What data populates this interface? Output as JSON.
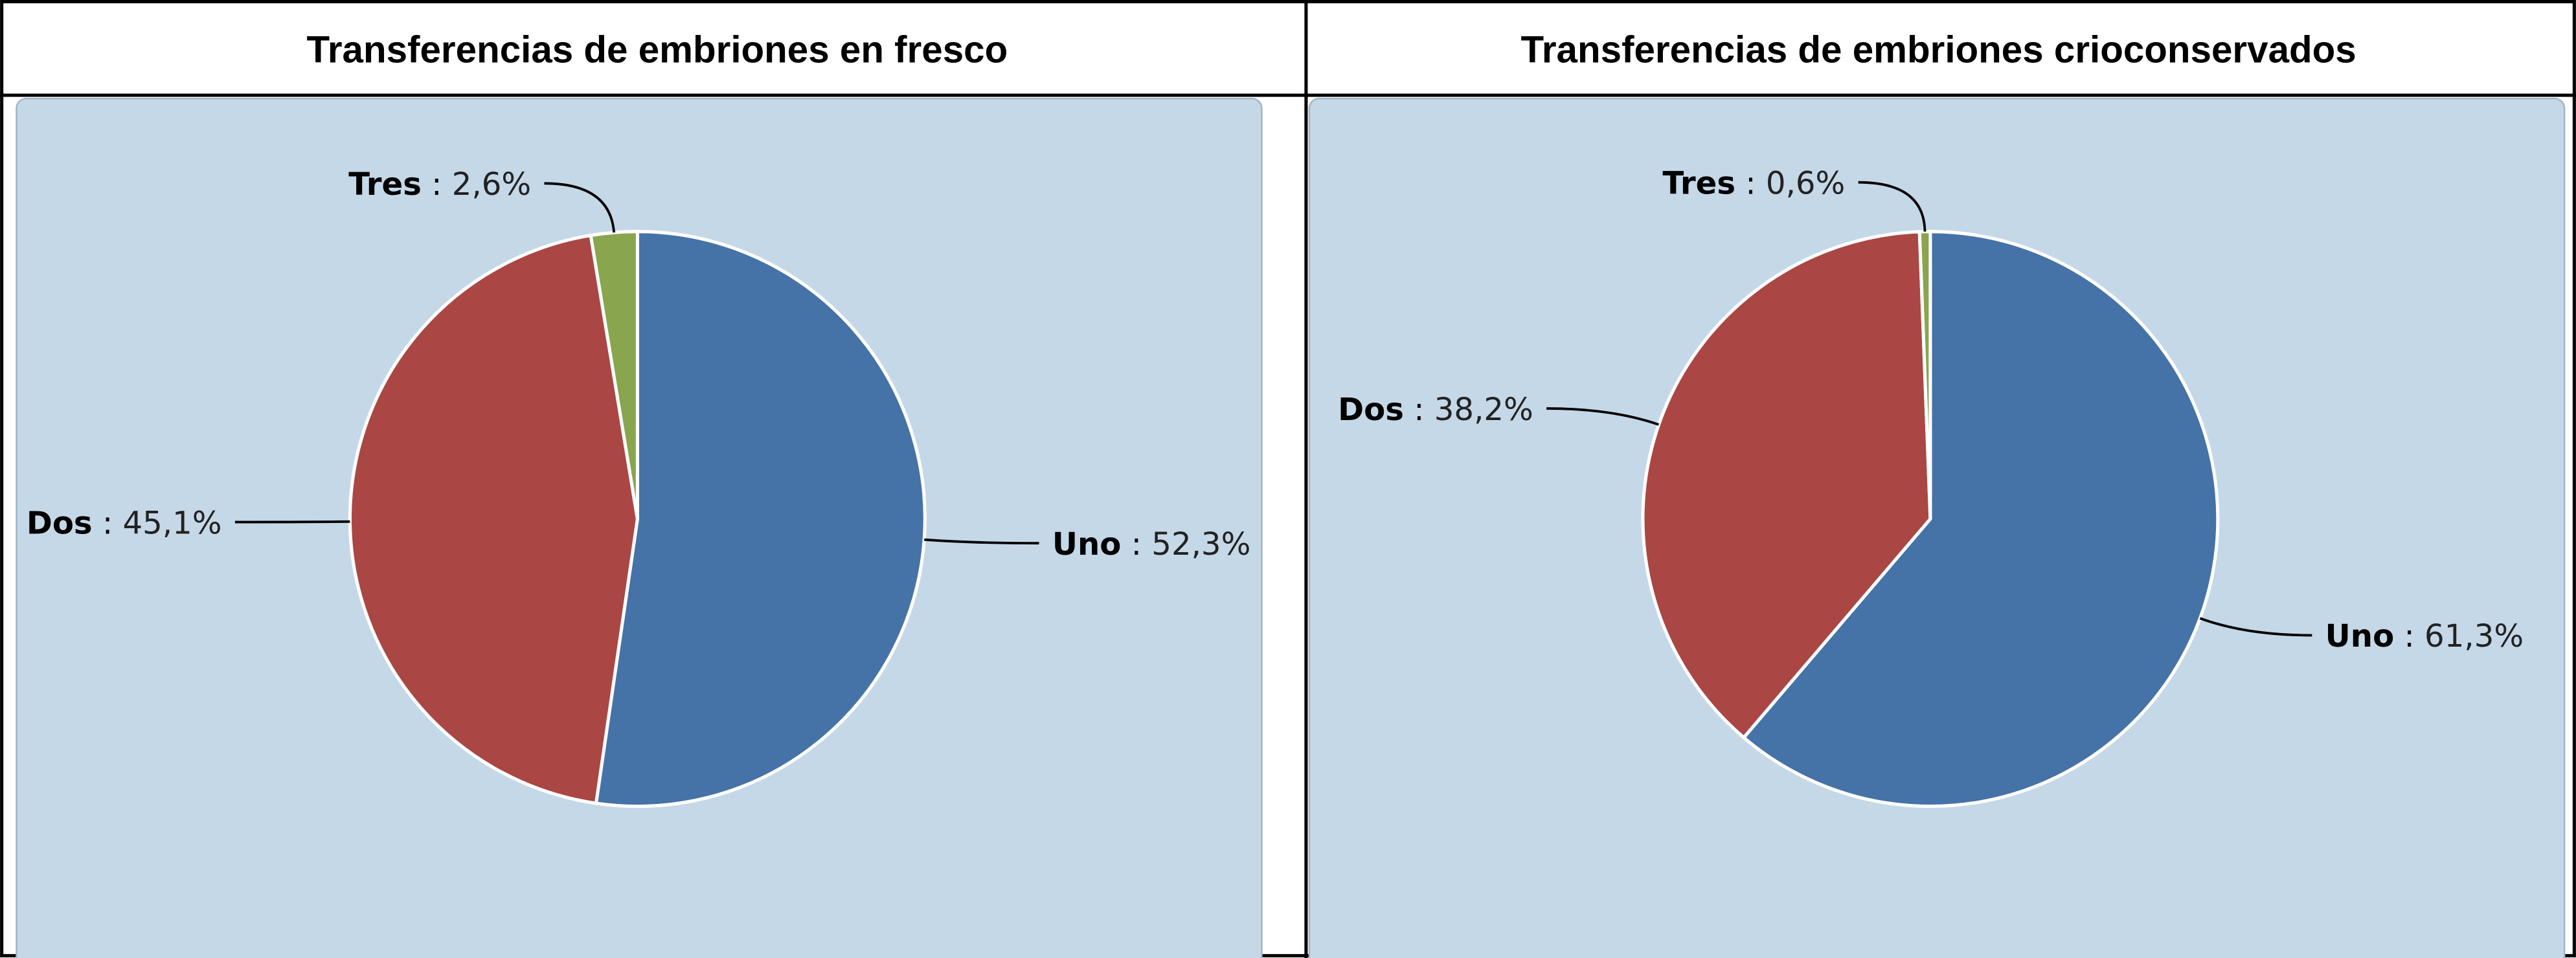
{
  "chart_data": [
    {
      "type": "pie",
      "title": "Transferencias de embriones en fresco",
      "categories": [
        "Uno",
        "Dos",
        "Tres"
      ],
      "values": [
        52.3,
        45.1,
        2.6
      ],
      "value_labels": [
        "52,3%",
        "45,1%",
        "2,6%"
      ],
      "label_separator": " : ",
      "colors": [
        "#4572a7",
        "#aa4643",
        "#89a54e"
      ]
    },
    {
      "type": "pie",
      "title": "Transferencias de embriones crioconservados",
      "categories": [
        "Uno",
        "Dos",
        "Tres"
      ],
      "values": [
        61.3,
        38.2,
        0.6
      ],
      "value_labels": [
        "61,3%",
        "38,2%",
        "0,6%"
      ],
      "label_separator": " : ",
      "colors": [
        "#4572a7",
        "#aa4643",
        "#89a54e"
      ]
    }
  ]
}
